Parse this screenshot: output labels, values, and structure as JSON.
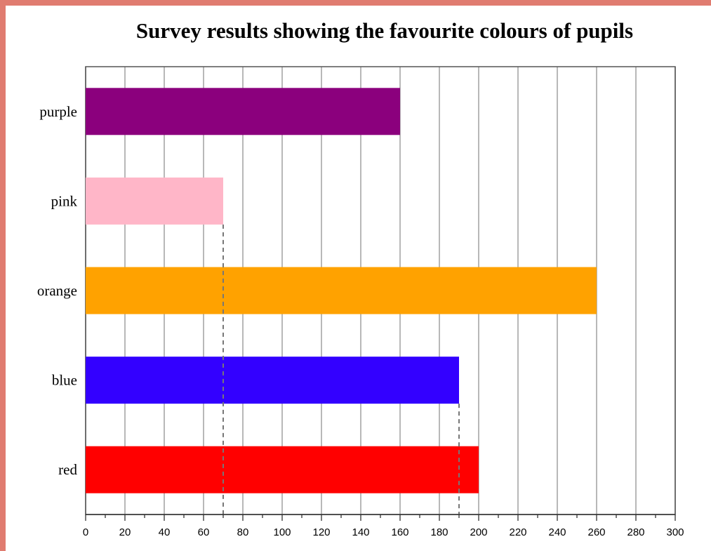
{
  "chart_data": {
    "type": "bar",
    "orientation": "horizontal",
    "title": "Survey results showing the favourite colours of pupils",
    "xlabel": "",
    "ylabel": "",
    "categories": [
      "purple",
      "pink",
      "orange",
      "blue",
      "red"
    ],
    "values": [
      160,
      70,
      260,
      190,
      200
    ],
    "colors": [
      "#8b007d",
      "#ffb6c8",
      "#ffa200",
      "#3300ff",
      "#ff0000"
    ],
    "xlim": [
      0,
      300
    ],
    "x_ticks": [
      0,
      20,
      40,
      60,
      80,
      100,
      120,
      140,
      160,
      180,
      200,
      220,
      240,
      260,
      280,
      300
    ],
    "grid": true,
    "legend": "none",
    "reference_lines": [
      70,
      190
    ]
  }
}
